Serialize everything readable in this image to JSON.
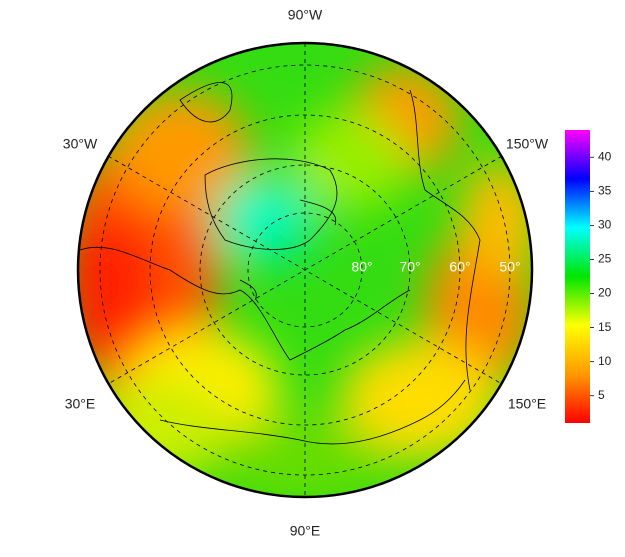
{
  "map": {
    "longitude_labels": [
      "90°W",
      "30°W",
      "150°W",
      "30°E",
      "150°E",
      "90°E"
    ],
    "latitude_labels": [
      "80°",
      "70°",
      "60°",
      "50°"
    ]
  },
  "colorbar": {
    "range": [
      1,
      44
    ],
    "ticks": [
      5,
      10,
      15,
      20,
      25,
      30,
      35,
      40
    ],
    "colors": [
      "#ff0000",
      "#ff9900",
      "#ffff00",
      "#00e600",
      "#00ffff",
      "#0000ff",
      "#ff00ff"
    ]
  }
}
